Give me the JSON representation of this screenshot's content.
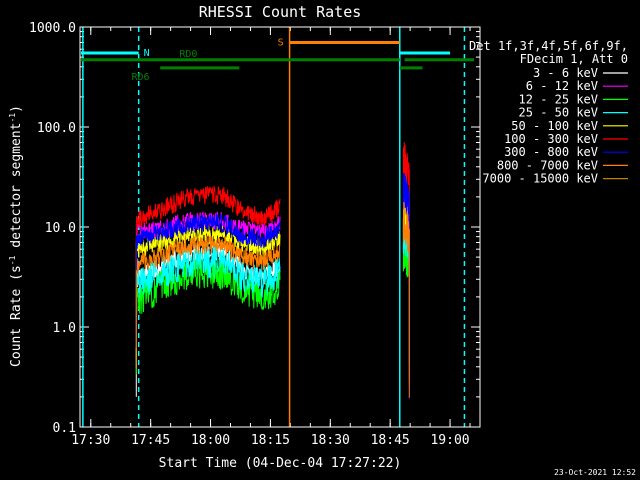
{
  "chart_data": {
    "type": "line",
    "title": "RHESSI Count Rates",
    "xlabel": "Start Time (04-Dec-04 17:27:22)",
    "ylabel": "Count Rate (s⁻¹ detector segment⁻¹)",
    "ylabel_parts": {
      "a": "Count Rate (s",
      "b": "-1",
      "c": " detector segment",
      "d": "-1",
      "e": ")"
    },
    "yscale": "log",
    "xlim": [
      17.455,
      19.125
    ],
    "ylim": [
      0.1,
      1000
    ],
    "x_ticks": [
      {
        "v": 17.5,
        "label": "17:30"
      },
      {
        "v": 17.75,
        "label": "17:45"
      },
      {
        "v": 18.0,
        "label": "18:00"
      },
      {
        "v": 18.25,
        "label": "18:15"
      },
      {
        "v": 18.5,
        "label": "18:30"
      },
      {
        "v": 18.75,
        "label": "18:45"
      },
      {
        "v": 19.0,
        "label": "19:00"
      }
    ],
    "y_ticks": [
      {
        "v": 0.1,
        "label": "0.1"
      },
      {
        "v": 1,
        "label": "1.0"
      },
      {
        "v": 10,
        "label": "10.0"
      },
      {
        "v": 100,
        "label": "100.0"
      },
      {
        "v": 1000,
        "label": "1000.0"
      }
    ],
    "grid": false,
    "legend": {
      "placement": "right",
      "header": [
        "Det 1f,3f,4f,5f,6f,9f,",
        "FDecim 1, Att 0"
      ]
    },
    "series": [
      {
        "name": "3 - 6 keV",
        "color": "#ffffff",
        "values": [
          [
            17.69,
            3.0
          ],
          [
            17.8,
            4.2
          ],
          [
            17.9,
            5.5
          ],
          [
            18.05,
            5.8
          ],
          [
            18.12,
            4.0
          ],
          [
            18.22,
            3.0
          ],
          [
            18.29,
            4.0
          ]
        ],
        "flare": [
          [
            18.805,
            10
          ],
          [
            18.83,
            7
          ]
        ]
      },
      {
        "name": "6 - 12 keV",
        "color": "#ff00ff",
        "values": [
          [
            17.69,
            9.0
          ],
          [
            17.8,
            9.5
          ],
          [
            17.9,
            11.5
          ],
          [
            18.05,
            11.5
          ],
          [
            18.12,
            9.5
          ],
          [
            18.22,
            8.8
          ],
          [
            18.29,
            11.0
          ]
        ],
        "flare": [
          [
            18.805,
            20
          ],
          [
            18.83,
            13
          ]
        ]
      },
      {
        "name": "12 - 25 keV",
        "color": "#00ff00",
        "values": [
          [
            17.69,
            1.8
          ],
          [
            17.8,
            2.6
          ],
          [
            17.9,
            3.3
          ],
          [
            18.05,
            3.4
          ],
          [
            18.12,
            2.6
          ],
          [
            18.22,
            2.0
          ],
          [
            18.29,
            2.6
          ]
        ],
        "flare": [
          [
            18.805,
            6
          ],
          [
            18.83,
            4
          ]
        ]
      },
      {
        "name": "25 - 50 keV",
        "color": "#00ffff",
        "values": [
          [
            17.69,
            2.6
          ],
          [
            17.8,
            3.5
          ],
          [
            17.9,
            4.4
          ],
          [
            18.05,
            4.5
          ],
          [
            18.12,
            3.4
          ],
          [
            18.22,
            2.8
          ],
          [
            18.29,
            3.6
          ]
        ],
        "flare": [
          [
            18.805,
            9
          ],
          [
            18.83,
            6
          ]
        ]
      },
      {
        "name": "50 - 100 keV",
        "color": "#ffff00",
        "values": [
          [
            17.69,
            6.0
          ],
          [
            17.8,
            7.0
          ],
          [
            17.9,
            8.2
          ],
          [
            18.05,
            8.4
          ],
          [
            18.12,
            6.8
          ],
          [
            18.22,
            6.2
          ],
          [
            18.29,
            8.0
          ]
        ],
        "flare": [
          [
            18.805,
            15
          ],
          [
            18.83,
            10
          ]
        ]
      },
      {
        "name": "100 - 300 keV",
        "color": "#ff0000",
        "values": [
          [
            17.69,
            12.0
          ],
          [
            17.8,
            15.0
          ],
          [
            17.9,
            20.0
          ],
          [
            18.05,
            21.0
          ],
          [
            18.12,
            15.0
          ],
          [
            18.22,
            12.5
          ],
          [
            18.29,
            16.0
          ]
        ],
        "flare": [
          [
            18.805,
            50
          ],
          [
            18.83,
            30
          ]
        ]
      },
      {
        "name": "300 - 800 keV",
        "color": "#0000ff",
        "values": [
          [
            17.69,
            7.5
          ],
          [
            17.8,
            8.8
          ],
          [
            17.9,
            10.5
          ],
          [
            18.05,
            11.0
          ],
          [
            18.12,
            8.5
          ],
          [
            18.22,
            7.5
          ],
          [
            18.29,
            9.5
          ]
        ],
        "flare": [
          [
            18.805,
            25
          ],
          [
            18.83,
            16
          ]
        ]
      },
      {
        "name": "800 - 7000 keV",
        "color": "#ff8000",
        "values": [
          [
            17.69,
            4.2
          ],
          [
            17.8,
            5.2
          ],
          [
            17.9,
            6.5
          ],
          [
            18.05,
            6.8
          ],
          [
            18.12,
            5.3
          ],
          [
            18.22,
            4.5
          ],
          [
            18.29,
            5.8
          ]
        ],
        "flare": [
          [
            18.805,
            12
          ],
          [
            18.83,
            8
          ]
        ]
      },
      {
        "name": "7000 - 15000 keV",
        "color": "#c08000",
        "values": [],
        "flare": []
      }
    ],
    "flag_bars": [
      {
        "label": "N",
        "color": "#00ffff",
        "y": 550,
        "segments": [
          [
            17.455,
            17.7
          ],
          [
            18.79,
            19.0
          ]
        ]
      },
      {
        "label": "S",
        "color": "#ff8000",
        "y": 700,
        "segments": [
          [
            18.33,
            18.79
          ]
        ]
      },
      {
        "label": "RD0",
        "color": "#008000",
        "y": 470,
        "segments": [
          [
            17.455,
            18.79
          ],
          [
            18.81,
            19.1
          ]
        ]
      },
      {
        "label": "RD6",
        "color": "#008000",
        "y": 390,
        "segments": [
          [
            17.79,
            18.12
          ],
          [
            18.79,
            18.885
          ]
        ]
      }
    ],
    "vlines": [
      {
        "x": 17.467,
        "color": "#00ffff",
        "style": "solid"
      },
      {
        "x": 17.7,
        "color": "#00ffff",
        "style": "dashed"
      },
      {
        "x": 18.33,
        "color": "#ff8000",
        "style": "solid"
      },
      {
        "x": 18.79,
        "color": "#00ffff",
        "style": "solid"
      },
      {
        "x": 19.06,
        "color": "#00ffff",
        "style": "dashed"
      }
    ],
    "timestamp": "23-Oct-2021 12:52"
  }
}
